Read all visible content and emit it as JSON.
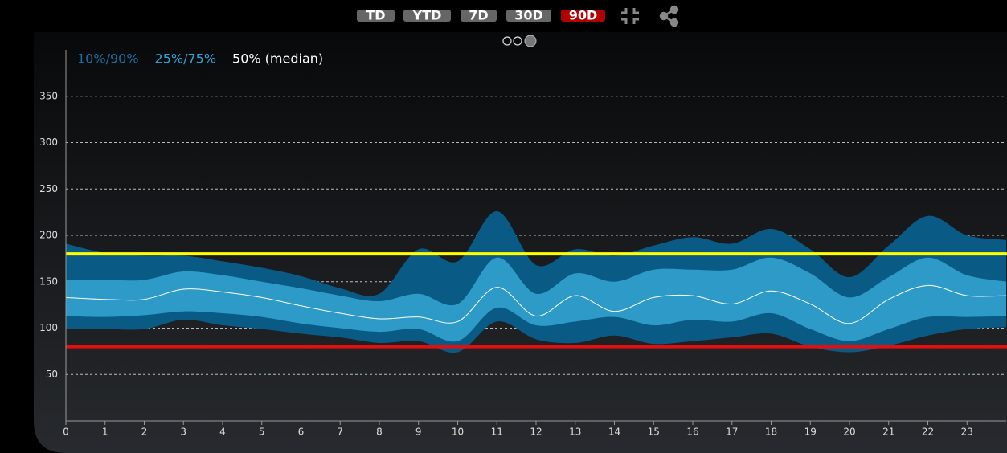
{
  "ui": {
    "buttons": [
      "TD",
      "YTD",
      "7D",
      "30D",
      "90D"
    ],
    "active_button": "90D"
  },
  "chart_data": {
    "type": "percentile_band",
    "x": [
      0,
      1,
      2,
      3,
      4,
      5,
      6,
      7,
      8,
      9,
      10,
      11,
      12,
      13,
      14,
      15,
      16,
      17,
      18,
      19,
      20,
      21,
      22,
      23,
      24
    ],
    "bands": [
      {
        "name": "10%/90%",
        "color": "#0a5a86",
        "legend_color": "#1d6fa2",
        "low": [
          99,
          99,
          99,
          109,
          103,
          99,
          94,
          90,
          84,
          86,
          74,
          107,
          88,
          84,
          92,
          83,
          86,
          90,
          94,
          80,
          74,
          81,
          92,
          99,
          101
        ],
        "high": [
          191,
          181,
          178,
          178,
          172,
          165,
          156,
          143,
          137,
          185,
          172,
          226,
          168,
          185,
          178,
          189,
          198,
          191,
          207,
          185,
          155,
          189,
          221,
          200,
          195
        ]
      },
      {
        "name": "25%/75%",
        "color": "#2e9ac8",
        "legend_color": "#3aa0d2",
        "low": [
          113,
          112,
          114,
          118,
          116,
          112,
          105,
          100,
          96,
          99,
          86,
          122,
          103,
          107,
          112,
          103,
          109,
          107,
          116,
          99,
          86,
          99,
          112,
          112,
          113
        ],
        "high": [
          152,
          152,
          152,
          161,
          157,
          150,
          143,
          135,
          129,
          137,
          126,
          176,
          137,
          159,
          150,
          163,
          163,
          163,
          176,
          159,
          133,
          155,
          176,
          157,
          150
        ]
      }
    ],
    "series": [
      {
        "name": "50% (median)",
        "color": "#ffffff",
        "values": [
          133,
          131,
          131,
          142,
          139,
          133,
          124,
          116,
          110,
          112,
          107,
          144,
          113,
          135,
          118,
          133,
          135,
          126,
          140,
          126,
          105,
          131,
          146,
          135,
          135
        ]
      }
    ],
    "thresholds": [
      {
        "value": 180,
        "color": "#ffff00"
      },
      {
        "value": 80,
        "color": "#e01010"
      }
    ],
    "xlim": [
      0,
      24
    ],
    "xticks": [
      0,
      1,
      2,
      3,
      4,
      5,
      6,
      7,
      8,
      9,
      10,
      11,
      12,
      13,
      14,
      15,
      16,
      17,
      18,
      19,
      20,
      21,
      22,
      23
    ],
    "ylim": [
      0,
      400
    ],
    "yticks": [
      50,
      100,
      150,
      200,
      250,
      300,
      350
    ],
    "grid": true
  }
}
